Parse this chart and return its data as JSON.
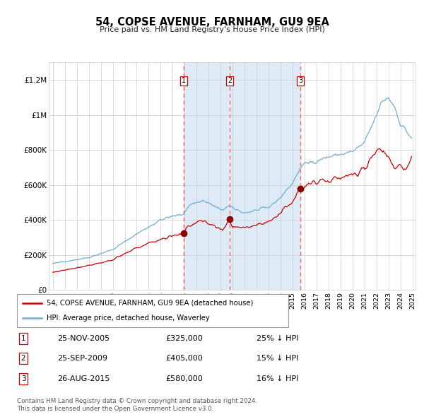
{
  "title": "54, COPSE AVENUE, FARNHAM, GU9 9EA",
  "subtitle": "Price paid vs. HM Land Registry's House Price Index (HPI)",
  "sale_dates": [
    "2005-11-25",
    "2009-09-25",
    "2015-08-26"
  ],
  "sale_prices": [
    325000,
    405000,
    580000
  ],
  "sale_labels": [
    "1",
    "2",
    "3"
  ],
  "sale_pct_below": [
    "25% ↓ HPI",
    "15% ↓ HPI",
    "16% ↓ HPI"
  ],
  "sale_date_strs": [
    "25-NOV-2005",
    "25-SEP-2009",
    "26-AUG-2015"
  ],
  "hpi_line_color": "#6baed6",
  "price_line_color": "#cc0000",
  "sale_marker_color": "#8b0000",
  "dashed_line_color": "#ff6666",
  "shaded_region_color": "#deeaf5",
  "grid_color": "#cccccc",
  "background_color": "#ffffff",
  "legend1_label": "54, COPSE AVENUE, FARNHAM, GU9 9EA (detached house)",
  "legend2_label": "HPI: Average price, detached house, Waverley",
  "footer1": "Contains HM Land Registry data © Crown copyright and database right 2024.",
  "footer2": "This data is licensed under the Open Government Licence v3.0.",
  "ylim": [
    0,
    1300000
  ],
  "yticks": [
    0,
    200000,
    400000,
    600000,
    800000,
    1000000,
    1200000
  ],
  "ytick_labels": [
    "£0",
    "£200K",
    "£400K",
    "£600K",
    "£800K",
    "£1M",
    "£1.2M"
  ]
}
